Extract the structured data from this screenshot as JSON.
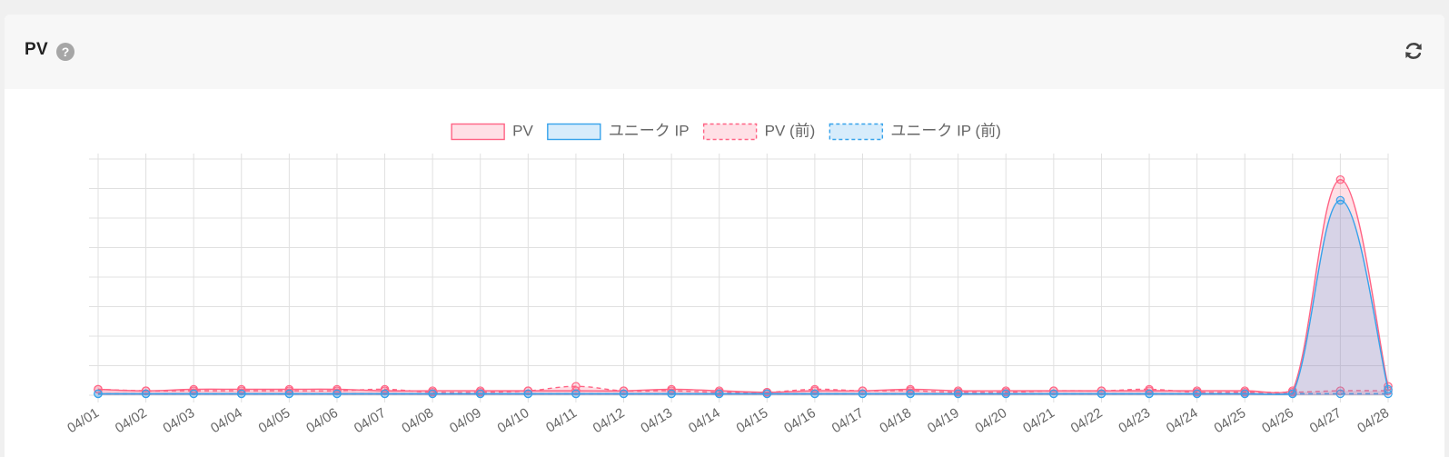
{
  "header": {
    "title": "PV",
    "help_icon": "question-circle-icon",
    "help_symbol": "?",
    "refresh_icon": "refresh-icon"
  },
  "colors": {
    "pv": "#ff6384",
    "pv_fill": "rgba(255,99,132,0.2)",
    "uip": "#36a2eb",
    "uip_fill": "rgba(54,162,235,0.2)",
    "grid": "#e0e0e0",
    "tick_text": "#666666"
  },
  "chart_data": {
    "type": "area",
    "categories": [
      "04/01",
      "04/02",
      "04/03",
      "04/04",
      "04/05",
      "04/06",
      "04/07",
      "04/08",
      "04/09",
      "04/10",
      "04/11",
      "04/12",
      "04/13",
      "04/14",
      "04/15",
      "04/16",
      "04/17",
      "04/18",
      "04/19",
      "04/20",
      "04/21",
      "04/22",
      "04/23",
      "04/24",
      "04/25",
      "04/26",
      "04/27",
      "04/28"
    ],
    "ylim": [
      0,
      80
    ],
    "grid": true,
    "y_tick_labels_visible": false,
    "legend_position": "top",
    "series": [
      {
        "name": "PV",
        "style": "solid",
        "color": "pv",
        "values": [
          2,
          1.5,
          2,
          2,
          2,
          2,
          1.5,
          1.5,
          1.5,
          1.5,
          1.5,
          1.5,
          2,
          1.5,
          1,
          1.5,
          1.5,
          2,
          1.5,
          1.5,
          1.5,
          1.5,
          1.5,
          1.5,
          1.5,
          1.5,
          73,
          3
        ]
      },
      {
        "name": "ユニーク IP",
        "style": "solid",
        "color": "uip",
        "values": [
          0.5,
          0.5,
          0.5,
          0.5,
          0.5,
          0.5,
          0.5,
          0.5,
          0.5,
          0.5,
          0.5,
          0.5,
          0.5,
          0.5,
          0.5,
          0.5,
          0.5,
          0.5,
          0.5,
          0.5,
          0.5,
          0.5,
          0.5,
          0.5,
          0.5,
          0.5,
          66,
          2
        ]
      },
      {
        "name": "PV (前)",
        "style": "dashed",
        "color": "pv",
        "values": [
          2,
          1.5,
          1.5,
          1.5,
          1.5,
          1.5,
          2,
          1,
          1,
          1.5,
          3,
          1.5,
          1.5,
          1,
          1,
          2,
          1.5,
          1.5,
          1,
          1,
          1.5,
          1.5,
          2,
          1,
          1,
          1,
          1.5,
          1.5
        ]
      },
      {
        "name": "ユニーク IP (前)",
        "style": "dashed",
        "color": "uip",
        "values": [
          0.5,
          0.5,
          0.5,
          0.5,
          0.5,
          0.5,
          0.5,
          0.5,
          0.5,
          0.5,
          0.5,
          0.5,
          0.5,
          0.5,
          0.5,
          0.5,
          0.5,
          0.5,
          0.5,
          0.5,
          0.5,
          0.5,
          0.5,
          0.5,
          0.5,
          0.5,
          0.5,
          0.5
        ]
      }
    ]
  }
}
